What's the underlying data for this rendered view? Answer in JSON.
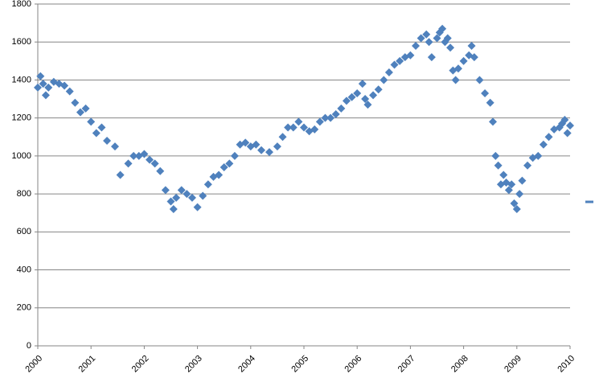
{
  "chart_data": {
    "type": "scatter",
    "series": [
      {
        "color": "#4f81bd",
        "x": [
          2000.0,
          2000.05,
          2000.1,
          2000.15,
          2000.2,
          2000.3,
          2000.4,
          2000.5,
          2000.6,
          2000.7,
          2000.8,
          2000.9,
          2001.0,
          2001.1,
          2001.2,
          2001.3,
          2001.45,
          2001.55,
          2001.7,
          2001.8,
          2001.9,
          2002.0,
          2002.1,
          2002.2,
          2002.3,
          2002.4,
          2002.5,
          2002.55,
          2002.6,
          2002.7,
          2002.8,
          2002.9,
          2003.0,
          2003.1,
          2003.2,
          2003.3,
          2003.4,
          2003.5,
          2003.6,
          2003.7,
          2003.8,
          2003.9,
          2004.0,
          2004.1,
          2004.2,
          2004.35,
          2004.5,
          2004.6,
          2004.7,
          2004.8,
          2004.9,
          2005.0,
          2005.1,
          2005.2,
          2005.3,
          2005.4,
          2005.5,
          2005.6,
          2005.7,
          2005.8,
          2005.9,
          2006.0,
          2006.1,
          2006.15,
          2006.2,
          2006.3,
          2006.4,
          2006.5,
          2006.6,
          2006.7,
          2006.8,
          2006.9,
          2007.0,
          2007.1,
          2007.2,
          2007.3,
          2007.35,
          2007.4,
          2007.5,
          2007.55,
          2007.6,
          2007.65,
          2007.7,
          2007.75,
          2007.8,
          2007.85,
          2007.9,
          2008.0,
          2008.1,
          2008.15,
          2008.2,
          2008.3,
          2008.4,
          2008.5,
          2008.55,
          2008.6,
          2008.65,
          2008.7,
          2008.75,
          2008.8,
          2008.85,
          2008.9,
          2008.95,
          2009.0,
          2009.05,
          2009.1,
          2009.2,
          2009.3,
          2009.4,
          2009.5,
          2009.6,
          2009.7,
          2009.8,
          2009.85,
          2009.9,
          2009.95,
          2010.0
        ],
        "values": [
          1360,
          1420,
          1380,
          1320,
          1360,
          1390,
          1380,
          1370,
          1340,
          1280,
          1230,
          1250,
          1180,
          1120,
          1150,
          1080,
          1050,
          900,
          960,
          1000,
          1000,
          1010,
          980,
          960,
          920,
          820,
          760,
          720,
          780,
          820,
          800,
          780,
          730,
          790,
          850,
          890,
          900,
          940,
          960,
          1000,
          1060,
          1070,
          1050,
          1060,
          1030,
          1020,
          1050,
          1100,
          1150,
          1150,
          1180,
          1150,
          1130,
          1140,
          1180,
          1200,
          1200,
          1220,
          1250,
          1290,
          1310,
          1330,
          1380,
          1300,
          1270,
          1320,
          1350,
          1400,
          1440,
          1480,
          1500,
          1520,
          1530,
          1580,
          1620,
          1640,
          1600,
          1520,
          1620,
          1650,
          1670,
          1600,
          1620,
          1570,
          1450,
          1400,
          1460,
          1500,
          1530,
          1580,
          1520,
          1400,
          1330,
          1280,
          1180,
          1000,
          950,
          850,
          900,
          860,
          820,
          850,
          750,
          720,
          800,
          870,
          950,
          990,
          1000,
          1060,
          1100,
          1140,
          1150,
          1170,
          1190,
          1120,
          1160
        ]
      }
    ],
    "xlim": [
      2000,
      2010
    ],
    "xticks": [
      2000,
      2001,
      2002,
      2003,
      2004,
      2005,
      2006,
      2007,
      2008,
      2009,
      2010
    ],
    "ylim": [
      0,
      1800
    ],
    "yticks": [
      0,
      200,
      400,
      600,
      800,
      1000,
      1200,
      1400,
      1600,
      1800
    ],
    "grid": true
  }
}
